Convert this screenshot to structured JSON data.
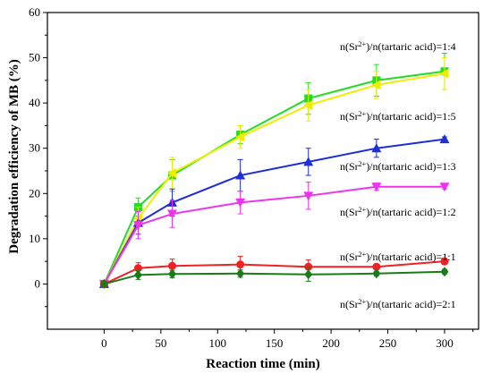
{
  "chart_data": {
    "type": "line",
    "xlabel": "Reaction time (min)",
    "ylabel": "Degradation efficiency of MB (%)",
    "xlim": [
      -50,
      330
    ],
    "ylim": [
      -10,
      60
    ],
    "xticks": [
      0,
      50,
      100,
      150,
      200,
      250,
      300
    ],
    "yticks": [
      0,
      10,
      20,
      30,
      40,
      50,
      60
    ],
    "grid": false,
    "x": [
      0,
      30,
      60,
      120,
      180,
      240,
      300
    ],
    "series": [
      {
        "name_prefix": "n(Sr",
        "name_sup": "2+",
        "name_suffix": ")/n(tartaric acid)=1:4",
        "color": "#22dd22",
        "marker": "square",
        "values": [
          0,
          17,
          24,
          33,
          41,
          45,
          47
        ],
        "errors": [
          0.5,
          2,
          3.5,
          2,
          3.5,
          3.5,
          4
        ]
      },
      {
        "name_prefix": "n(Sr",
        "name_sup": "2+",
        "name_suffix": ")/n(tartaric acid)=1:5",
        "color": "#eeee00",
        "marker": "triangle-left",
        "values": [
          0,
          14.5,
          24.5,
          32.5,
          39.5,
          44,
          46.5
        ],
        "errors": [
          0.5,
          2.5,
          3.5,
          2.5,
          3.5,
          3,
          3.5
        ]
      },
      {
        "name_prefix": "n(Sr",
        "name_sup": "2+",
        "name_suffix": ")/n(tartaric acid)=1:3",
        "color": "#1f2fd6",
        "marker": "triangle-up",
        "values": [
          0,
          13.5,
          18,
          24,
          27,
          30,
          32
        ],
        "errors": [
          0.5,
          2.5,
          3,
          3.5,
          3,
          2,
          0.5
        ]
      },
      {
        "name_prefix": "n(Sr",
        "name_sup": "2+",
        "name_suffix": ")/n(tartaric acid)=1:2",
        "color": "#ee33ee",
        "marker": "triangle-down",
        "values": [
          0,
          13,
          15.5,
          18,
          19.5,
          21.5,
          21.5
        ],
        "errors": [
          0.5,
          3,
          3,
          2.5,
          3,
          0.8,
          0.5
        ]
      },
      {
        "name_prefix": "n(Sr",
        "name_sup": "2+",
        "name_suffix": ")/n(tartaric acid)=1:1",
        "color": "#ee2222",
        "marker": "circle",
        "values": [
          0,
          3.5,
          4,
          4.3,
          3.8,
          3.8,
          5
        ],
        "errors": [
          0.5,
          1.2,
          1.5,
          1.8,
          1.5,
          0.5,
          0.7
        ]
      },
      {
        "name_prefix": "n(Sr",
        "name_sup": "2+",
        "name_suffix": ")/n(tartaric acid)=2:1",
        "color": "#1a7a1a",
        "marker": "diamond",
        "values": [
          0,
          2,
          2.2,
          2.3,
          2.1,
          2.3,
          2.7
        ],
        "errors": [
          0.5,
          1,
          0.8,
          0.8,
          1.5,
          0.5,
          0.5
        ]
      }
    ]
  }
}
